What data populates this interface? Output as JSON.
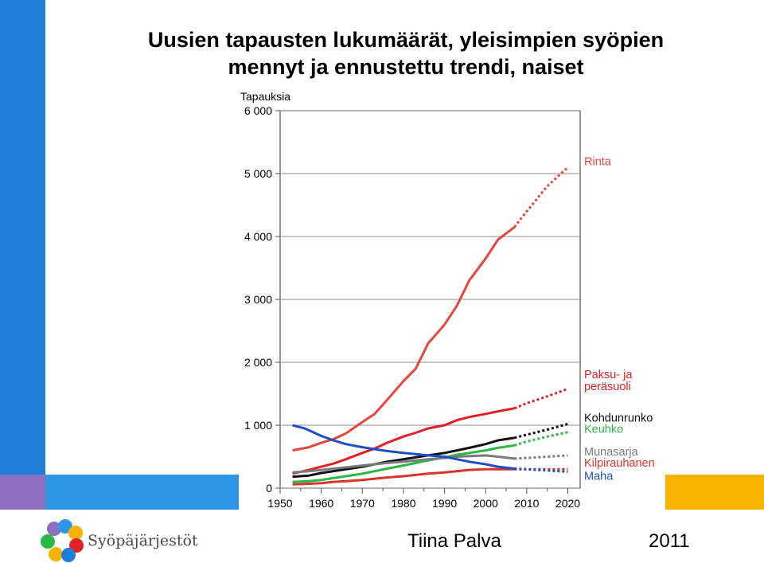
{
  "title_line1": "Uusien tapausten lukumäärät, yleisimpien syöpien",
  "title_line2": "mennyt ja ennustettu trendi, naiset",
  "footer": {
    "author": "Tiina Palva",
    "year": "2011",
    "org": "Syöpäjärjestöt"
  },
  "colors": {
    "accent_blue": "#1f7fd8",
    "accent_purple": "#8b6fc1",
    "accent_sky": "#2b97e6",
    "accent_yellow": "#f6b400"
  },
  "icons": {
    "logo": "flower-logo-icon"
  },
  "chart_data": {
    "type": "line",
    "ylabel": "Tapauksia",
    "xlabel": "",
    "xlim": [
      1950,
      2023
    ],
    "ylim": [
      0,
      6000
    ],
    "grid": true,
    "xticks": [
      1950,
      1960,
      1970,
      1980,
      1990,
      2000,
      2010,
      2020
    ],
    "yticks": [
      0,
      1000,
      2000,
      3000,
      4000,
      5000,
      6000
    ],
    "xtick_labels": [
      "1950",
      "1960",
      "1970",
      "1980",
      "1990",
      "2000",
      "2010",
      "2020"
    ],
    "ytick_labels": [
      "0",
      "1 000",
      "2 000",
      "3 000",
      "4 000",
      "5 000",
      "6 000"
    ],
    "legend_placement": "right (labels at line ends)",
    "series": [
      {
        "name": "Rinta",
        "label_lines": [
          "Rinta"
        ],
        "color": "#e8453c",
        "label_y": 5130,
        "observed": [
          [
            1953,
            600
          ],
          [
            1957,
            650
          ],
          [
            1960,
            720
          ],
          [
            1963,
            780
          ],
          [
            1966,
            870
          ],
          [
            1970,
            1050
          ],
          [
            1973,
            1180
          ],
          [
            1976,
            1400
          ],
          [
            1980,
            1700
          ],
          [
            1983,
            1900
          ],
          [
            1986,
            2300
          ],
          [
            1990,
            2600
          ],
          [
            1993,
            2900
          ],
          [
            1996,
            3300
          ],
          [
            2000,
            3650
          ],
          [
            2003,
            3950
          ],
          [
            2007,
            4150
          ]
        ],
        "forecast": [
          [
            2007,
            4150
          ],
          [
            2010,
            4400
          ],
          [
            2015,
            4800
          ],
          [
            2020,
            5100
          ]
        ]
      },
      {
        "name": "Paksu- ja peräsuoli",
        "label_lines": [
          "Paksu- ja",
          "peräsuoli"
        ],
        "color": "#e41f26",
        "label_y": 1750,
        "observed": [
          [
            1953,
            230
          ],
          [
            1957,
            290
          ],
          [
            1960,
            340
          ],
          [
            1963,
            390
          ],
          [
            1966,
            460
          ],
          [
            1970,
            560
          ],
          [
            1973,
            630
          ],
          [
            1976,
            720
          ],
          [
            1980,
            820
          ],
          [
            1983,
            880
          ],
          [
            1986,
            950
          ],
          [
            1990,
            1000
          ],
          [
            1993,
            1080
          ],
          [
            1996,
            1130
          ],
          [
            2000,
            1180
          ],
          [
            2003,
            1220
          ],
          [
            2007,
            1270
          ]
        ],
        "forecast": [
          [
            2007,
            1270
          ],
          [
            2010,
            1350
          ],
          [
            2015,
            1460
          ],
          [
            2020,
            1580
          ]
        ]
      },
      {
        "name": "Kohdunrunko",
        "label_lines": [
          "Kohdunrunko"
        ],
        "color": "#111111",
        "label_y": 1060,
        "observed": [
          [
            1953,
            180
          ],
          [
            1957,
            200
          ],
          [
            1960,
            240
          ],
          [
            1963,
            270
          ],
          [
            1966,
            300
          ],
          [
            1970,
            340
          ],
          [
            1973,
            380
          ],
          [
            1976,
            420
          ],
          [
            1980,
            460
          ],
          [
            1983,
            490
          ],
          [
            1986,
            520
          ],
          [
            1990,
            560
          ],
          [
            1993,
            600
          ],
          [
            1996,
            640
          ],
          [
            2000,
            700
          ],
          [
            2003,
            760
          ],
          [
            2007,
            800
          ]
        ],
        "forecast": [
          [
            2007,
            800
          ],
          [
            2010,
            850
          ],
          [
            2015,
            930
          ],
          [
            2020,
            1020
          ]
        ]
      },
      {
        "name": "Keuhko",
        "label_lines": [
          "Keuhko"
        ],
        "color": "#2bb744",
        "label_y": 880,
        "observed": [
          [
            1953,
            100
          ],
          [
            1957,
            110
          ],
          [
            1960,
            130
          ],
          [
            1963,
            160
          ],
          [
            1966,
            190
          ],
          [
            1970,
            230
          ],
          [
            1973,
            270
          ],
          [
            1976,
            310
          ],
          [
            1980,
            360
          ],
          [
            1983,
            400
          ],
          [
            1986,
            440
          ],
          [
            1990,
            490
          ],
          [
            1993,
            530
          ],
          [
            1996,
            560
          ],
          [
            2000,
            600
          ],
          [
            2003,
            640
          ],
          [
            2007,
            680
          ]
        ],
        "forecast": [
          [
            2007,
            680
          ],
          [
            2010,
            740
          ],
          [
            2015,
            820
          ],
          [
            2020,
            890
          ]
        ]
      },
      {
        "name": "Munasarja",
        "label_lines": [
          "Munasarja"
        ],
        "color": "#7a7a7a",
        "label_y": 520,
        "observed": [
          [
            1953,
            250
          ],
          [
            1957,
            270
          ],
          [
            1960,
            290
          ],
          [
            1963,
            310
          ],
          [
            1966,
            330
          ],
          [
            1970,
            360
          ],
          [
            1973,
            380
          ],
          [
            1976,
            400
          ],
          [
            1980,
            420
          ],
          [
            1983,
            440
          ],
          [
            1986,
            460
          ],
          [
            1990,
            480
          ],
          [
            1993,
            500
          ],
          [
            1996,
            510
          ],
          [
            2000,
            520
          ],
          [
            2003,
            500
          ],
          [
            2007,
            470
          ]
        ],
        "forecast": [
          [
            2007,
            470
          ],
          [
            2010,
            480
          ],
          [
            2015,
            500
          ],
          [
            2020,
            520
          ]
        ]
      },
      {
        "name": "Kilpirauhanen",
        "label_lines": [
          "Kilpirauhanen"
        ],
        "color": "#d8352a",
        "label_y": 340,
        "observed": [
          [
            1953,
            60
          ],
          [
            1957,
            70
          ],
          [
            1960,
            80
          ],
          [
            1963,
            100
          ],
          [
            1966,
            110
          ],
          [
            1970,
            130
          ],
          [
            1973,
            150
          ],
          [
            1976,
            170
          ],
          [
            1980,
            190
          ],
          [
            1983,
            210
          ],
          [
            1986,
            230
          ],
          [
            1990,
            250
          ],
          [
            1993,
            270
          ],
          [
            1996,
            290
          ],
          [
            2000,
            300
          ],
          [
            2003,
            300
          ],
          [
            2007,
            300
          ]
        ],
        "forecast": [
          [
            2007,
            300
          ],
          [
            2010,
            300
          ],
          [
            2015,
            300
          ],
          [
            2020,
            300
          ]
        ]
      },
      {
        "name": "Maha",
        "label_lines": [
          "Maha"
        ],
        "color": "#1f4fc4",
        "label_y": 130,
        "observed": [
          [
            1953,
            1000
          ],
          [
            1956,
            950
          ],
          [
            1960,
            830
          ],
          [
            1963,
            760
          ],
          [
            1966,
            700
          ],
          [
            1970,
            650
          ],
          [
            1973,
            620
          ],
          [
            1976,
            590
          ],
          [
            1980,
            560
          ],
          [
            1983,
            540
          ],
          [
            1986,
            520
          ],
          [
            1990,
            500
          ],
          [
            1993,
            460
          ],
          [
            1996,
            420
          ],
          [
            2000,
            380
          ],
          [
            2003,
            340
          ],
          [
            2007,
            310
          ]
        ],
        "forecast": [
          [
            2007,
            310
          ],
          [
            2010,
            300
          ],
          [
            2015,
            280
          ],
          [
            2020,
            260
          ]
        ]
      }
    ]
  }
}
